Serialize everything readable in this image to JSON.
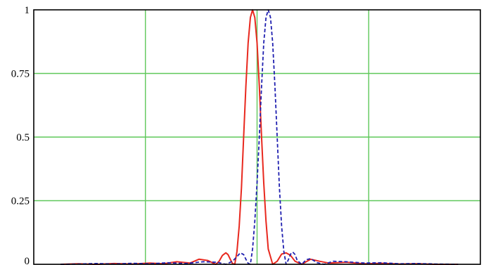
{
  "chart_data": {
    "type": "line",
    "title": "",
    "xlabel": "",
    "ylabel": "",
    "xlim": [
      -1,
      1
    ],
    "ylim": [
      0,
      1
    ],
    "yticks": [
      {
        "value": 0,
        "label": "0"
      },
      {
        "value": 0.25,
        "label": "0.25"
      },
      {
        "value": 0.5,
        "label": "0.5"
      },
      {
        "value": 0.75,
        "label": "0.75"
      },
      {
        "value": 1,
        "label": "1"
      }
    ],
    "xgrid": [
      -0.5,
      0,
      0.5
    ],
    "ygrid": [
      0.25,
      0.5,
      0.75
    ],
    "grid": true,
    "grid_color": "#5fc85a",
    "series": [
      {
        "style": "solid",
        "color": "#e8281e",
        "x": [
          -0.88,
          -0.8,
          -0.72,
          -0.64,
          -0.56,
          -0.48,
          -0.42,
          -0.36,
          -0.3,
          -0.26,
          -0.22,
          -0.2,
          -0.185,
          -0.17,
          -0.155,
          -0.14,
          -0.13,
          -0.12,
          -0.11,
          -0.1,
          -0.09,
          -0.08,
          -0.07,
          -0.06,
          -0.05,
          -0.04,
          -0.03,
          -0.02,
          -0.01,
          0,
          0.01,
          0.02,
          0.03,
          0.04,
          0.05,
          0.07,
          0.09,
          0.11,
          0.13,
          0.15,
          0.17,
          0.2,
          0.24,
          0.28,
          0.32,
          0.4,
          0.48,
          0.56,
          0.64,
          0.72,
          0.8,
          0.9
        ],
        "y": [
          0.0,
          0.002,
          0.0,
          0.003,
          0.001,
          0.005,
          0.002,
          0.01,
          0.005,
          0.02,
          0.015,
          0.006,
          0.0,
          0.012,
          0.035,
          0.045,
          0.038,
          0.02,
          0.003,
          0.0,
          0.05,
          0.15,
          0.3,
          0.5,
          0.7,
          0.87,
          0.97,
          1.0,
          0.97,
          0.87,
          0.7,
          0.5,
          0.32,
          0.17,
          0.06,
          0.0,
          0.012,
          0.04,
          0.045,
          0.035,
          0.012,
          0.0,
          0.02,
          0.012,
          0.005,
          0.008,
          0.002,
          0.004,
          0.001,
          0.002,
          0.0,
          0.0
        ]
      },
      {
        "style": "dashed",
        "color": "#2020b0",
        "x": [
          -0.88,
          -0.8,
          -0.72,
          -0.64,
          -0.56,
          -0.48,
          -0.4,
          -0.32,
          -0.24,
          -0.18,
          -0.14,
          -0.11,
          -0.09,
          -0.075,
          -0.06,
          -0.05,
          -0.04,
          -0.03,
          -0.02,
          -0.01,
          0,
          0.01,
          0.02,
          0.03,
          0.04,
          0.05,
          0.06,
          0.07,
          0.08,
          0.09,
          0.1,
          0.11,
          0.12,
          0.13,
          0.14,
          0.15,
          0.16,
          0.17,
          0.18,
          0.2,
          0.22,
          0.24,
          0.27,
          0.3,
          0.34,
          0.4,
          0.48,
          0.56,
          0.64,
          0.72,
          0.8,
          0.9
        ],
        "y": [
          0.0,
          0.001,
          0.003,
          0.001,
          0.004,
          0.002,
          0.006,
          0.003,
          0.01,
          0.008,
          0.0,
          0.012,
          0.03,
          0.045,
          0.038,
          0.02,
          0.004,
          0.0,
          0.06,
          0.17,
          0.32,
          0.5,
          0.7,
          0.87,
          0.97,
          1.0,
          0.97,
          0.87,
          0.7,
          0.5,
          0.3,
          0.15,
          0.05,
          0.0,
          0.018,
          0.04,
          0.048,
          0.038,
          0.015,
          0.0,
          0.018,
          0.022,
          0.006,
          0.0,
          0.012,
          0.01,
          0.005,
          0.006,
          0.002,
          0.003,
          0.001,
          0.0
        ]
      }
    ]
  }
}
